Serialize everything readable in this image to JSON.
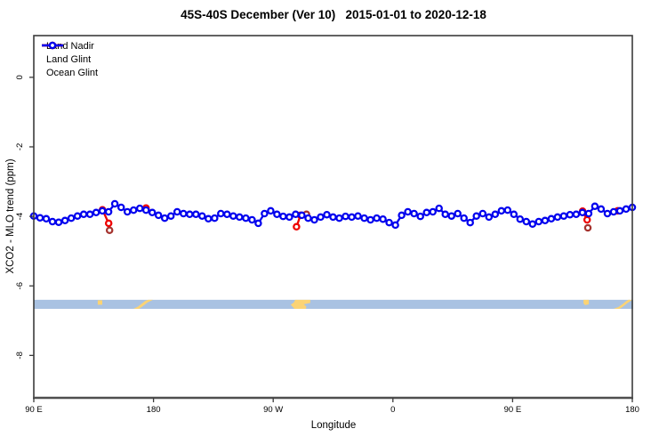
{
  "title": "45S-40S December (Ver 10)   2015-01-01 to 2020-12-18",
  "legend": [
    {
      "label": "Land Nadir",
      "color": "#a5332e"
    },
    {
      "label": "Land Glint",
      "color": "#ee0000"
    },
    {
      "label": "Ocean Glint",
      "color": "#0000ee"
    }
  ],
  "colors": {
    "frame": "#3b3b3b",
    "bottom_axis": "#4f4f4f",
    "ocean_band": "#a9c2e2",
    "land_patch": "#fbd374",
    "land_nadir": "#a5332e",
    "land_glint": "#ee0000",
    "ocean_glint": "#0000ee",
    "text": "#000000"
  },
  "chart_data": {
    "type": "line",
    "title": "45S-40S December (Ver 10)   2015-01-01 to 2020-12-18",
    "xlabel": "Longitude",
    "ylabel": "XCO2 - MLO trend (ppm)",
    "xlim": [
      90,
      540
    ],
    "ylim": [
      -9.22,
      1.2
    ],
    "grid": false,
    "legend_position": "top-left",
    "x_ticks": [
      {
        "v": 90,
        "label": "90 E"
      },
      {
        "v": 180,
        "label": "180"
      },
      {
        "v": 270,
        "label": "90 W"
      },
      {
        "v": 360,
        "label": "0"
      },
      {
        "v": 450,
        "label": "90 E"
      },
      {
        "v": 540,
        "label": "180"
      }
    ],
    "y_ticks": [
      {
        "v": 0,
        "label": "0"
      },
      {
        "v": -2,
        "label": "-2"
      },
      {
        "v": -4,
        "label": "-4"
      },
      {
        "v": -6,
        "label": "-6"
      },
      {
        "v": -8,
        "label": "-8"
      }
    ],
    "series": [
      {
        "name": "Land Nadir",
        "color": "#a5332e",
        "connected": false,
        "clusters": [
          [
            [
              147.0,
              -4.4
            ]
          ],
          [
            [
              295.0,
              -3.94
            ]
          ],
          [
            [
              506.6,
              -4.33
            ]
          ]
        ]
      },
      {
        "name": "Land Glint",
        "color": "#ee0000",
        "connected": true,
        "clusters": [
          [
            [
              141.6,
              -3.81
            ],
            [
              146.3,
              -4.2
            ]
          ],
          [
            [
              174.4,
              -3.76
            ]
          ],
          [
            [
              287.5,
              -4.3
            ],
            [
              290.5,
              -3.97
            ]
          ],
          [
            [
              502.6,
              -3.85
            ],
            [
              506.0,
              -4.1
            ]
          ],
          [
            [
              529.0,
              -3.84
            ]
          ]
        ]
      },
      {
        "name": "Ocean Glint",
        "color": "#0000ee",
        "connected": true,
        "lons": [
          90,
          94.69,
          99.38,
          104.06,
          108.75,
          113.44,
          118.13,
          122.81,
          127.5,
          132.19,
          136.88,
          141.56,
          146.25,
          150.94,
          155.63,
          160.31,
          165,
          169.69,
          174.38,
          179.06,
          183.75,
          188.44,
          193.13,
          197.81,
          202.5,
          207.19,
          211.88,
          216.56,
          221.25,
          225.94,
          230.63,
          235.31,
          240,
          244.69,
          249.38,
          254.06,
          258.75,
          263.44,
          268.13,
          272.81,
          277.5,
          282.19,
          286.88,
          291.56,
          296.25,
          300.94,
          305.63,
          310.31,
          315,
          319.69,
          324.38,
          329.06,
          333.75,
          338.44,
          343.13,
          347.81,
          352.5,
          357.19,
          361.88,
          366.56,
          371.25,
          375.94,
          380.63,
          385.31,
          390,
          394.69,
          399.38,
          404.06,
          408.75,
          413.44,
          418.13,
          422.81,
          427.5,
          432.19,
          436.88,
          441.56,
          446.25,
          450.94,
          455.63,
          460.31,
          465,
          469.69,
          474.38,
          479.06,
          483.75,
          488.44,
          493.13,
          497.81,
          502.5,
          507.19,
          511.88,
          516.56,
          521.25,
          525.94,
          530.63,
          535.31,
          540
        ],
        "values": [
          -3.99,
          -4.04,
          -4.07,
          -4.15,
          -4.17,
          -4.12,
          -4.05,
          -3.99,
          -3.94,
          -3.94,
          -3.89,
          -3.84,
          -3.87,
          -3.64,
          -3.74,
          -3.87,
          -3.82,
          -3.77,
          -3.82,
          -3.89,
          -3.97,
          -4.05,
          -3.99,
          -3.87,
          -3.92,
          -3.94,
          -3.94,
          -3.99,
          -4.07,
          -4.05,
          -3.92,
          -3.94,
          -3.99,
          -4.02,
          -4.05,
          -4.1,
          -4.2,
          -3.92,
          -3.84,
          -3.94,
          -4.0,
          -4.02,
          -3.94,
          -3.97,
          -4.05,
          -4.1,
          -4.02,
          -3.95,
          -4.02,
          -4.05,
          -4.0,
          -4.02,
          -3.99,
          -4.05,
          -4.1,
          -4.05,
          -4.08,
          -4.18,
          -4.25,
          -3.97,
          -3.87,
          -3.92,
          -4.0,
          -3.89,
          -3.87,
          -3.77,
          -3.94,
          -3.99,
          -3.92,
          -4.05,
          -4.18,
          -3.99,
          -3.92,
          -4.02,
          -3.94,
          -3.84,
          -3.82,
          -3.94,
          -4.08,
          -4.15,
          -4.22,
          -4.15,
          -4.12,
          -4.07,
          -4.02,
          -3.99,
          -3.95,
          -3.94,
          -3.89,
          -3.92,
          -3.71,
          -3.79,
          -3.92,
          -3.87,
          -3.84,
          -3.79,
          -3.74
        ]
      }
    ],
    "map_band": {
      "description": "latitude-strip world map 45S-40S",
      "ocean_color": "#a9c2e2",
      "land_color": "#fbd374",
      "y_top": -6.4,
      "y_bottom": -6.66,
      "land_patches": [
        {
          "name": "australia-victoria",
          "pts": [
            [
              138.1,
              0.05
            ],
            [
              141.5,
              0.05
            ],
            [
              141.5,
              0.55
            ],
            [
              138.1,
              0.55
            ]
          ]
        },
        {
          "name": "new-zealand",
          "pts": [
            [
              164.9,
              1
            ],
            [
              168.3,
              0.75
            ],
            [
              171,
              0.45
            ],
            [
              174,
              0.1
            ],
            [
              176,
              0
            ],
            [
              179.6,
              0
            ],
            [
              175.5,
              0.3
            ],
            [
              172,
              0.7
            ],
            [
              169.2,
              1
            ]
          ]
        },
        {
          "name": "south-america",
          "pts": [
            [
              286.5,
              0
            ],
            [
              297.9,
              0
            ],
            [
              297.9,
              0.35
            ],
            [
              293,
              0.5
            ],
            [
              295,
              0.75
            ],
            [
              294.5,
              1
            ],
            [
              286,
              1
            ],
            [
              283.2,
              0.55
            ],
            [
              285.5,
              0.3
            ]
          ]
        },
        {
          "name": "australia-victoria-2",
          "pts": [
            [
              503.3,
              0
            ],
            [
              507.3,
              0
            ],
            [
              507.3,
              0.5
            ],
            [
              504.5,
              0.6
            ],
            [
              503.3,
              0.4
            ]
          ]
        },
        {
          "name": "new-zealand-2",
          "pts": [
            [
              525.9,
              1
            ],
            [
              529.5,
              0.8
            ],
            [
              532.5,
              0.5
            ],
            [
              535.5,
              0.12
            ],
            [
              537,
              0
            ],
            [
              539.9,
              0
            ],
            [
              536.5,
              0.35
            ],
            [
              533,
              0.75
            ],
            [
              530.5,
              1
            ]
          ]
        }
      ]
    }
  }
}
